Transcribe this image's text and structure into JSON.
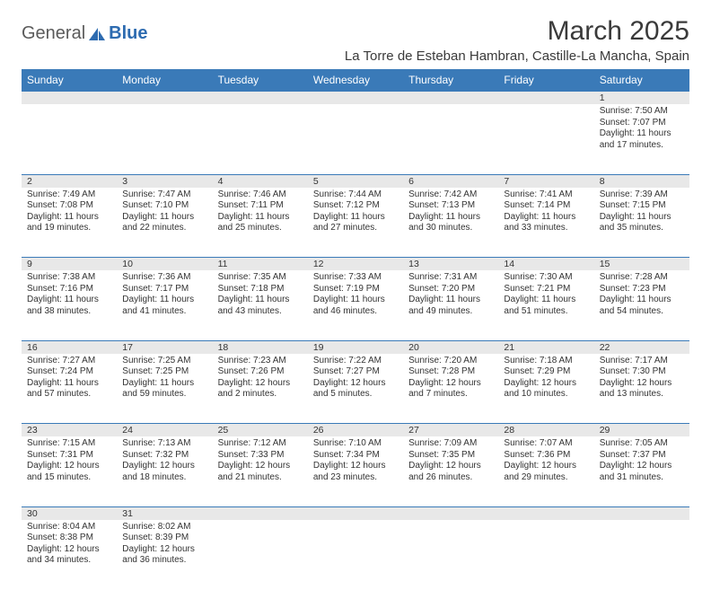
{
  "logo": {
    "part1": "General",
    "part2": "Blue"
  },
  "title": "March 2025",
  "location": "La Torre de Esteban Hambran, Castille-La Mancha, Spain",
  "colors": {
    "header_bg": "#3a7ab8",
    "header_text": "#ffffff",
    "daynum_bg": "#e8e8e8",
    "row_border": "#3a7ab8",
    "text": "#333333",
    "logo_gray": "#5a5a5a",
    "logo_blue": "#2d6bb0"
  },
  "day_headers": [
    "Sunday",
    "Monday",
    "Tuesday",
    "Wednesday",
    "Thursday",
    "Friday",
    "Saturday"
  ],
  "weeks": [
    [
      null,
      null,
      null,
      null,
      null,
      null,
      {
        "n": "1",
        "sr": "Sunrise: 7:50 AM",
        "ss": "Sunset: 7:07 PM",
        "dl": "Daylight: 11 hours and 17 minutes."
      }
    ],
    [
      {
        "n": "2",
        "sr": "Sunrise: 7:49 AM",
        "ss": "Sunset: 7:08 PM",
        "dl": "Daylight: 11 hours and 19 minutes."
      },
      {
        "n": "3",
        "sr": "Sunrise: 7:47 AM",
        "ss": "Sunset: 7:10 PM",
        "dl": "Daylight: 11 hours and 22 minutes."
      },
      {
        "n": "4",
        "sr": "Sunrise: 7:46 AM",
        "ss": "Sunset: 7:11 PM",
        "dl": "Daylight: 11 hours and 25 minutes."
      },
      {
        "n": "5",
        "sr": "Sunrise: 7:44 AM",
        "ss": "Sunset: 7:12 PM",
        "dl": "Daylight: 11 hours and 27 minutes."
      },
      {
        "n": "6",
        "sr": "Sunrise: 7:42 AM",
        "ss": "Sunset: 7:13 PM",
        "dl": "Daylight: 11 hours and 30 minutes."
      },
      {
        "n": "7",
        "sr": "Sunrise: 7:41 AM",
        "ss": "Sunset: 7:14 PM",
        "dl": "Daylight: 11 hours and 33 minutes."
      },
      {
        "n": "8",
        "sr": "Sunrise: 7:39 AM",
        "ss": "Sunset: 7:15 PM",
        "dl": "Daylight: 11 hours and 35 minutes."
      }
    ],
    [
      {
        "n": "9",
        "sr": "Sunrise: 7:38 AM",
        "ss": "Sunset: 7:16 PM",
        "dl": "Daylight: 11 hours and 38 minutes."
      },
      {
        "n": "10",
        "sr": "Sunrise: 7:36 AM",
        "ss": "Sunset: 7:17 PM",
        "dl": "Daylight: 11 hours and 41 minutes."
      },
      {
        "n": "11",
        "sr": "Sunrise: 7:35 AM",
        "ss": "Sunset: 7:18 PM",
        "dl": "Daylight: 11 hours and 43 minutes."
      },
      {
        "n": "12",
        "sr": "Sunrise: 7:33 AM",
        "ss": "Sunset: 7:19 PM",
        "dl": "Daylight: 11 hours and 46 minutes."
      },
      {
        "n": "13",
        "sr": "Sunrise: 7:31 AM",
        "ss": "Sunset: 7:20 PM",
        "dl": "Daylight: 11 hours and 49 minutes."
      },
      {
        "n": "14",
        "sr": "Sunrise: 7:30 AM",
        "ss": "Sunset: 7:21 PM",
        "dl": "Daylight: 11 hours and 51 minutes."
      },
      {
        "n": "15",
        "sr": "Sunrise: 7:28 AM",
        "ss": "Sunset: 7:23 PM",
        "dl": "Daylight: 11 hours and 54 minutes."
      }
    ],
    [
      {
        "n": "16",
        "sr": "Sunrise: 7:27 AM",
        "ss": "Sunset: 7:24 PM",
        "dl": "Daylight: 11 hours and 57 minutes."
      },
      {
        "n": "17",
        "sr": "Sunrise: 7:25 AM",
        "ss": "Sunset: 7:25 PM",
        "dl": "Daylight: 11 hours and 59 minutes."
      },
      {
        "n": "18",
        "sr": "Sunrise: 7:23 AM",
        "ss": "Sunset: 7:26 PM",
        "dl": "Daylight: 12 hours and 2 minutes."
      },
      {
        "n": "19",
        "sr": "Sunrise: 7:22 AM",
        "ss": "Sunset: 7:27 PM",
        "dl": "Daylight: 12 hours and 5 minutes."
      },
      {
        "n": "20",
        "sr": "Sunrise: 7:20 AM",
        "ss": "Sunset: 7:28 PM",
        "dl": "Daylight: 12 hours and 7 minutes."
      },
      {
        "n": "21",
        "sr": "Sunrise: 7:18 AM",
        "ss": "Sunset: 7:29 PM",
        "dl": "Daylight: 12 hours and 10 minutes."
      },
      {
        "n": "22",
        "sr": "Sunrise: 7:17 AM",
        "ss": "Sunset: 7:30 PM",
        "dl": "Daylight: 12 hours and 13 minutes."
      }
    ],
    [
      {
        "n": "23",
        "sr": "Sunrise: 7:15 AM",
        "ss": "Sunset: 7:31 PM",
        "dl": "Daylight: 12 hours and 15 minutes."
      },
      {
        "n": "24",
        "sr": "Sunrise: 7:13 AM",
        "ss": "Sunset: 7:32 PM",
        "dl": "Daylight: 12 hours and 18 minutes."
      },
      {
        "n": "25",
        "sr": "Sunrise: 7:12 AM",
        "ss": "Sunset: 7:33 PM",
        "dl": "Daylight: 12 hours and 21 minutes."
      },
      {
        "n": "26",
        "sr": "Sunrise: 7:10 AM",
        "ss": "Sunset: 7:34 PM",
        "dl": "Daylight: 12 hours and 23 minutes."
      },
      {
        "n": "27",
        "sr": "Sunrise: 7:09 AM",
        "ss": "Sunset: 7:35 PM",
        "dl": "Daylight: 12 hours and 26 minutes."
      },
      {
        "n": "28",
        "sr": "Sunrise: 7:07 AM",
        "ss": "Sunset: 7:36 PM",
        "dl": "Daylight: 12 hours and 29 minutes."
      },
      {
        "n": "29",
        "sr": "Sunrise: 7:05 AM",
        "ss": "Sunset: 7:37 PM",
        "dl": "Daylight: 12 hours and 31 minutes."
      }
    ],
    [
      {
        "n": "30",
        "sr": "Sunrise: 8:04 AM",
        "ss": "Sunset: 8:38 PM",
        "dl": "Daylight: 12 hours and 34 minutes."
      },
      {
        "n": "31",
        "sr": "Sunrise: 8:02 AM",
        "ss": "Sunset: 8:39 PM",
        "dl": "Daylight: 12 hours and 36 minutes."
      },
      null,
      null,
      null,
      null,
      null
    ]
  ]
}
